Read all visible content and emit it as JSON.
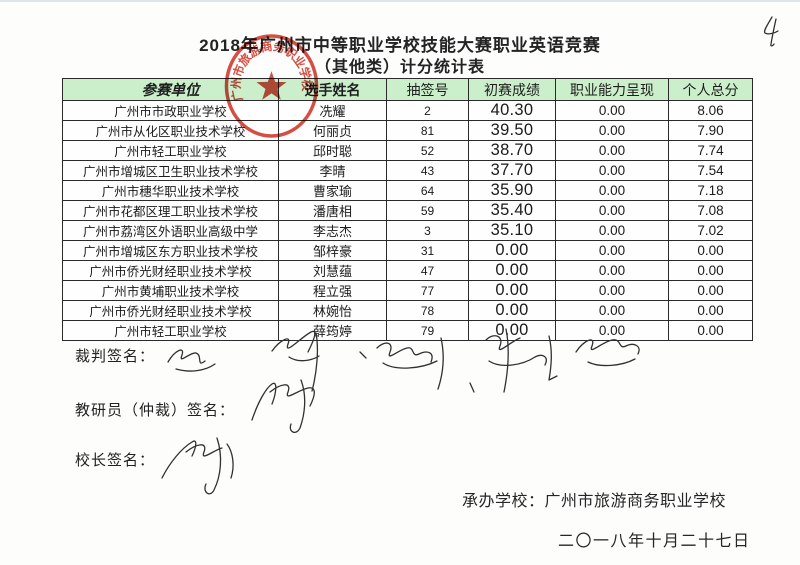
{
  "page": {
    "page_number": "4",
    "title_line1": "2018年广州市中等职业学校技能大赛职业英语竞赛",
    "title_line2": "（其他类）计分统计表"
  },
  "table": {
    "headers": [
      "参赛单位",
      "选手姓名",
      "抽签号",
      "初赛成绩",
      "职业能力呈现",
      "个人总分"
    ],
    "rows": [
      {
        "school": "广州市市政职业学校",
        "name": "冼耀",
        "draw": "2",
        "prelim": "40.30",
        "ability": "0.00",
        "total": "8.06"
      },
      {
        "school": "广州市从化区职业技术学校",
        "name": "何丽贞",
        "draw": "81",
        "prelim": "39.50",
        "ability": "0.00",
        "total": "7.90"
      },
      {
        "school": "广州市轻工职业学校",
        "name": "邱时聪",
        "draw": "52",
        "prelim": "38.70",
        "ability": "0.00",
        "total": "7.74"
      },
      {
        "school": "广州市增城区卫生职业技术学校",
        "name": "李晴",
        "draw": "43",
        "prelim": "37.70",
        "ability": "0.00",
        "total": "7.54"
      },
      {
        "school": "广州市穗华职业技术学校",
        "name": "曹家瑜",
        "draw": "64",
        "prelim": "35.90",
        "ability": "0.00",
        "total": "7.18"
      },
      {
        "school": "广州市花都区理工职业技术学校",
        "name": "潘唐相",
        "draw": "59",
        "prelim": "35.40",
        "ability": "0.00",
        "total": "7.08"
      },
      {
        "school": "广州市荔湾区外语职业高级中学",
        "name": "李志杰",
        "draw": "3",
        "prelim": "35.10",
        "ability": "0.00",
        "total": "7.02"
      },
      {
        "school": "广州市增城区东方职业技术学校",
        "name": "邹梓豪",
        "draw": "31",
        "prelim": "0.00",
        "ability": "0.00",
        "total": "0.00"
      },
      {
        "school": "广州市侨光财经职业技术学校",
        "name": "刘慧蕴",
        "draw": "47",
        "prelim": "0.00",
        "ability": "0.00",
        "total": "0.00"
      },
      {
        "school": "广州市黄埔职业技术学校",
        "name": "程立强",
        "draw": "77",
        "prelim": "0.00",
        "ability": "0.00",
        "total": "0.00"
      },
      {
        "school": "广州市侨光财经职业技术学校",
        "name": "林婉怡",
        "draw": "78",
        "prelim": "0.00",
        "ability": "0.00",
        "total": "0.00"
      },
      {
        "school": "广州市轻工职业学校",
        "name": "薛筠婷",
        "draw": "79",
        "prelim": "0.00",
        "ability": "0.00",
        "total": "0.00"
      }
    ]
  },
  "signatures": {
    "judge_label": "裁判签名：",
    "arbiter_label": "教研员（仲裁）签名：",
    "principal_label": "校长签名："
  },
  "footer": {
    "host_line": "承办学校：广州市旅游商务职业学校",
    "date_line": "二〇一八年十月二十七日"
  },
  "stamp": {
    "arc_text": "广州市旅游商务职业学校"
  },
  "colors": {
    "header_green": "#cbefcb",
    "stamp_red": "#d23a2e",
    "border": "#2a2a2a"
  }
}
